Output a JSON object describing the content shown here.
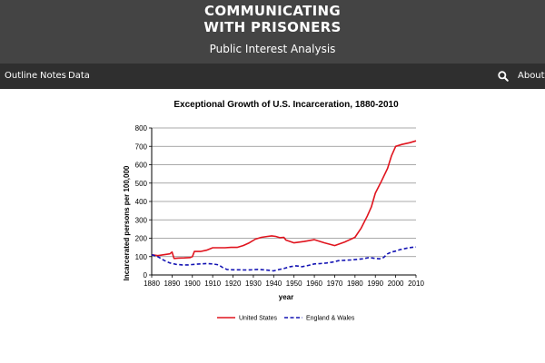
{
  "header": {
    "title_line1": "COMMUNICATING",
    "title_line2": "WITH PRISONERS",
    "subtitle": "Public Interest Analysis"
  },
  "nav": {
    "outline": "Outline",
    "notes": "Notes",
    "data": "Data",
    "search_icon": "search-icon",
    "about": "About"
  },
  "colors": {
    "header_bg": "#444444",
    "nav_bg": "#2f2f2f",
    "us_series": "#e0141e",
    "ew_series": "#1414b4"
  },
  "chart_data": {
    "type": "line",
    "title": "Exceptional Growth of U.S. Incarceration, 1880-2010",
    "xlabel": "year",
    "ylabel": "Incarcerated persons per 100,000",
    "xlim": [
      1880,
      2010
    ],
    "ylim": [
      0,
      800
    ],
    "xticks": [
      1880,
      1890,
      1900,
      1910,
      1920,
      1930,
      1940,
      1950,
      1960,
      1970,
      1980,
      1990,
      2000,
      2010
    ],
    "yticks": [
      0,
      100,
      200,
      300,
      400,
      500,
      600,
      700,
      800
    ],
    "grid": "horizontal",
    "legend_position": "bottom",
    "series": [
      {
        "name": "United States",
        "color": "#e0141e",
        "dash": "solid",
        "points": [
          [
            1880,
            110
          ],
          [
            1883,
            105
          ],
          [
            1886,
            110
          ],
          [
            1889,
            115
          ],
          [
            1890,
            125
          ],
          [
            1891,
            90
          ],
          [
            1893,
            92
          ],
          [
            1896,
            93
          ],
          [
            1899,
            95
          ],
          [
            1900,
            100
          ],
          [
            1901,
            128
          ],
          [
            1904,
            128
          ],
          [
            1907,
            135
          ],
          [
            1910,
            148
          ],
          [
            1913,
            148
          ],
          [
            1916,
            148
          ],
          [
            1919,
            150
          ],
          [
            1922,
            150
          ],
          [
            1925,
            160
          ],
          [
            1928,
            175
          ],
          [
            1931,
            195
          ],
          [
            1934,
            205
          ],
          [
            1937,
            210
          ],
          [
            1939,
            213
          ],
          [
            1941,
            210
          ],
          [
            1943,
            203
          ],
          [
            1945,
            205
          ],
          [
            1946,
            190
          ],
          [
            1950,
            175
          ],
          [
            1955,
            182
          ],
          [
            1960,
            192
          ],
          [
            1965,
            175
          ],
          [
            1970,
            160
          ],
          [
            1975,
            180
          ],
          [
            1980,
            205
          ],
          [
            1983,
            255
          ],
          [
            1986,
            320
          ],
          [
            1988,
            370
          ],
          [
            1990,
            445
          ],
          [
            1993,
            510
          ],
          [
            1996,
            580
          ],
          [
            1998,
            650
          ],
          [
            2000,
            700
          ],
          [
            2003,
            710
          ],
          [
            2007,
            720
          ],
          [
            2010,
            730
          ]
        ]
      },
      {
        "name": "England & Wales",
        "color": "#1414b4",
        "dash": "dashed",
        "points": [
          [
            1880,
            110
          ],
          [
            1883,
            100
          ],
          [
            1886,
            80
          ],
          [
            1889,
            65
          ],
          [
            1892,
            58
          ],
          [
            1895,
            55
          ],
          [
            1898,
            55
          ],
          [
            1901,
            58
          ],
          [
            1904,
            60
          ],
          [
            1907,
            62
          ],
          [
            1910,
            60
          ],
          [
            1913,
            55
          ],
          [
            1915,
            40
          ],
          [
            1917,
            30
          ],
          [
            1920,
            28
          ],
          [
            1923,
            28
          ],
          [
            1926,
            27
          ],
          [
            1929,
            28
          ],
          [
            1932,
            30
          ],
          [
            1935,
            28
          ],
          [
            1938,
            25
          ],
          [
            1940,
            22
          ],
          [
            1942,
            28
          ],
          [
            1945,
            35
          ],
          [
            1948,
            45
          ],
          [
            1951,
            50
          ],
          [
            1954,
            45
          ],
          [
            1957,
            52
          ],
          [
            1960,
            60
          ],
          [
            1963,
            62
          ],
          [
            1966,
            65
          ],
          [
            1969,
            70
          ],
          [
            1972,
            78
          ],
          [
            1975,
            80
          ],
          [
            1978,
            82
          ],
          [
            1981,
            85
          ],
          [
            1984,
            88
          ],
          [
            1987,
            95
          ],
          [
            1990,
            90
          ],
          [
            1992,
            88
          ],
          [
            1994,
            95
          ],
          [
            1996,
            115
          ],
          [
            1998,
            125
          ],
          [
            2000,
            130
          ],
          [
            2002,
            138
          ],
          [
            2004,
            142
          ],
          [
            2006,
            147
          ],
          [
            2008,
            150
          ],
          [
            2010,
            152
          ]
        ]
      }
    ]
  }
}
